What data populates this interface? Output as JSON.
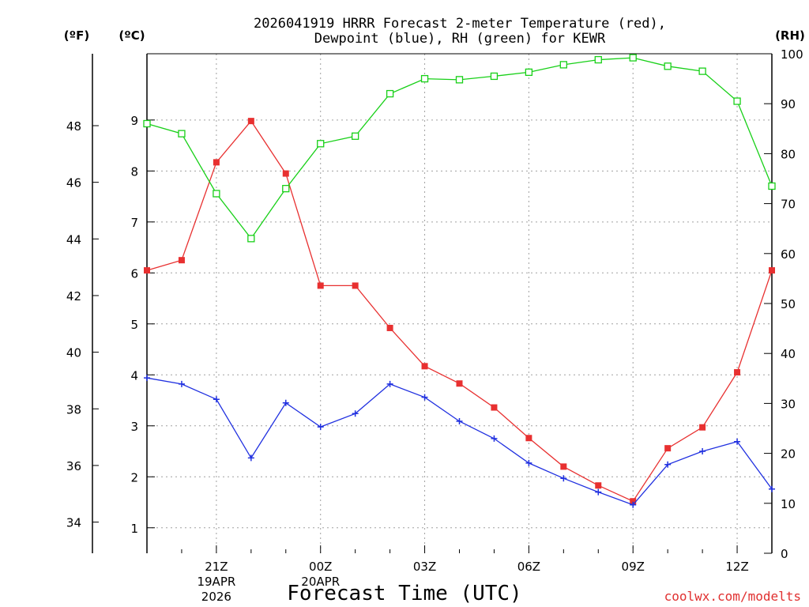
{
  "chart_data": {
    "type": "line",
    "title_line1": "2026041919 HRRR Forecast 2-meter Temperature (red),",
    "title_line2": "Dewpoint (blue), RH (green) for KEWR",
    "xlabel": "Forecast Time (UTC)",
    "credit": "coolwx.com/modelts",
    "units": {
      "fahrenheit": "(ºF)",
      "celsius": "(ºC)",
      "rh": "(RH)"
    },
    "x_range_hours": [
      19,
      37
    ],
    "x_hours": [
      19,
      20,
      21,
      22,
      23,
      24,
      25,
      26,
      27,
      28,
      29,
      30,
      31,
      32,
      33,
      34,
      35,
      36,
      37
    ],
    "x_ticks": [
      {
        "hour": 21,
        "lines": [
          "21Z",
          "19APR",
          "2026"
        ]
      },
      {
        "hour": 24,
        "lines": [
          "00Z",
          "20APR"
        ]
      },
      {
        "hour": 27,
        "lines": [
          "03Z"
        ]
      },
      {
        "hour": 30,
        "lines": [
          "06Z"
        ]
      },
      {
        "hour": 33,
        "lines": [
          "09Z"
        ]
      },
      {
        "hour": 36,
        "lines": [
          "12Z"
        ]
      }
    ],
    "celsius_axis": {
      "range": [
        0.5,
        10.3
      ],
      "ticks": [
        1,
        2,
        3,
        4,
        5,
        6,
        7,
        8,
        9
      ]
    },
    "fahrenheit_axis": {
      "ticks": [
        34,
        36,
        38,
        40,
        42,
        44,
        46,
        48
      ]
    },
    "rh_axis": {
      "range": [
        0,
        100
      ],
      "ticks": [
        0,
        10,
        20,
        30,
        40,
        50,
        60,
        70,
        80,
        90,
        100
      ]
    },
    "series": [
      {
        "name": "Temperature",
        "color": "#e83030",
        "marker": "filled-square",
        "axis": "celsius",
        "values": [
          6.05,
          6.25,
          8.17,
          8.98,
          7.95,
          5.75,
          5.75,
          4.92,
          4.17,
          3.83,
          3.36,
          2.76,
          2.2,
          1.83,
          1.52,
          2.56,
          2.97,
          4.05,
          6.05
        ]
      },
      {
        "name": "Dewpoint",
        "color": "#2030e0",
        "marker": "plus",
        "axis": "celsius",
        "values": [
          3.94,
          3.82,
          3.52,
          2.37,
          3.45,
          2.98,
          3.24,
          3.82,
          3.56,
          3.09,
          2.75,
          2.27,
          1.97,
          1.7,
          1.45,
          2.24,
          2.5,
          2.69,
          1.76
        ]
      },
      {
        "name": "RH",
        "color": "#18d018",
        "marker": "open-square",
        "axis": "rh",
        "values": [
          86,
          84,
          72,
          63,
          73,
          82,
          83.5,
          92,
          95,
          94.8,
          95.5,
          96.3,
          97.8,
          98.8,
          99.2,
          97.5,
          96.5,
          90.5,
          73.5
        ]
      }
    ],
    "grid": true
  }
}
